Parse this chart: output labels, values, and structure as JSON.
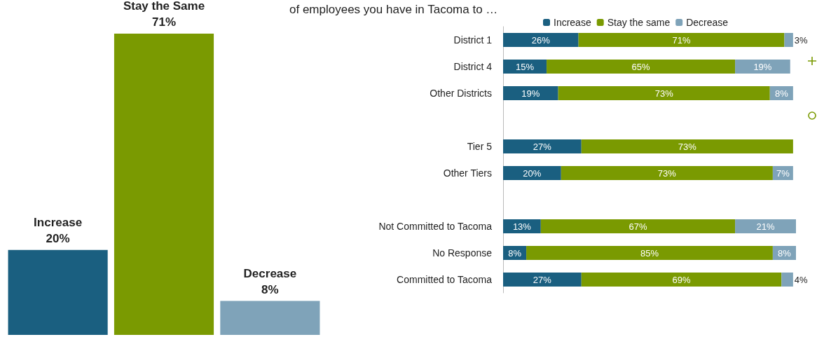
{
  "chart_data": [
    {
      "type": "bar",
      "categories": [
        null
      ],
      "tick_labels": false,
      "series": [
        {
          "name": "Increase",
          "color": "#1a5f80",
          "values": [
            20
          ],
          "value_labels": [
            "20%"
          ]
        },
        {
          "name": "Stay the Same",
          "color": "#7a9a01",
          "values": [
            71
          ],
          "value_labels": [
            "71%"
          ]
        },
        {
          "name": "Decrease",
          "color": "#7fa3b9",
          "values": [
            8
          ],
          "value_labels": [
            "8%"
          ]
        }
      ]
    },
    {
      "type": "bar",
      "title": "of employees you have in Tacoma to …",
      "orientation": "horizontal",
      "stacked": true,
      "legend": "top",
      "tick_labels": "y",
      "xlim": [
        0,
        101
      ],
      "categories": [
        "District 1",
        "District 4",
        "Other Districts",
        null,
        "Tier 5",
        "Other Tiers",
        null,
        "Not Committed to Tacoma",
        "No Response",
        "Committed to Tacoma"
      ],
      "series": [
        {
          "name": "Increase",
          "color": "#1a5f80",
          "values": [
            26,
            15,
            19,
            null,
            27,
            20,
            null,
            13,
            8,
            27
          ],
          "value_labels": [
            "26%",
            "15%",
            "19%",
            null,
            "27%",
            "20%",
            null,
            "13%",
            "8%",
            "27%"
          ]
        },
        {
          "name": "Stay the same",
          "color": "#7a9a01",
          "values": [
            71,
            65,
            73,
            null,
            73,
            73,
            null,
            67,
            85,
            69
          ],
          "value_labels": [
            "71%",
            "65%",
            "73%",
            null,
            "73%",
            "73%",
            null,
            "67%",
            "85%",
            "69%"
          ]
        },
        {
          "name": "Decrease",
          "color": "#7fa3b9",
          "values": [
            3,
            19,
            8,
            null,
            null,
            7,
            null,
            21,
            8,
            4
          ],
          "value_labels": [
            "3%",
            "19%",
            "8%",
            null,
            null,
            "7%",
            null,
            "21%",
            "8%",
            "4%"
          ]
        }
      ]
    }
  ]
}
